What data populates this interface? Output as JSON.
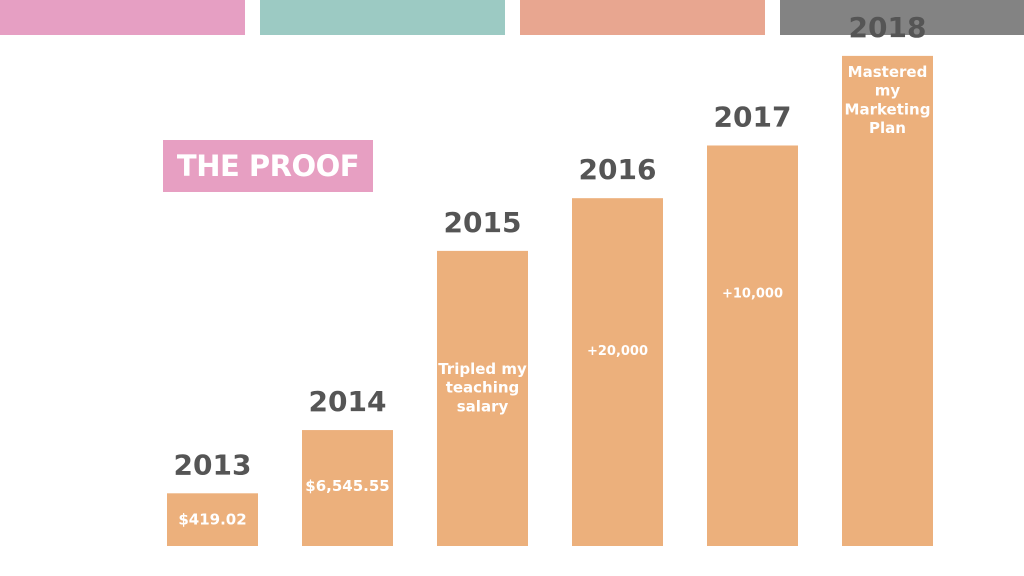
{
  "colors": {
    "top_bars": [
      "#e69fc3",
      "#9ccac3",
      "#e8a690",
      "#838383"
    ],
    "bar_fill": "#ecb07c",
    "title_bg": "#e79fc2",
    "year_text": "#555555"
  },
  "title_badge": "THE PROOF",
  "chart_data": {
    "type": "bar",
    "categories": [
      "2013",
      "2014",
      "2015",
      "2016",
      "2017",
      "2018"
    ],
    "values": [
      1,
      2.2,
      5.6,
      6.6,
      7.6,
      9.3
    ],
    "bar_labels": [
      [
        "$419.02"
      ],
      [
        "$6,545.55"
      ],
      [
        "Tripled my",
        "teaching",
        "salary"
      ],
      [
        "+20,000"
      ],
      [
        "+10,000"
      ],
      [
        "Mastered",
        "my",
        "Marketing",
        "Plan"
      ]
    ],
    "title": "",
    "xlabel": "",
    "ylabel": "",
    "grid": false
  }
}
